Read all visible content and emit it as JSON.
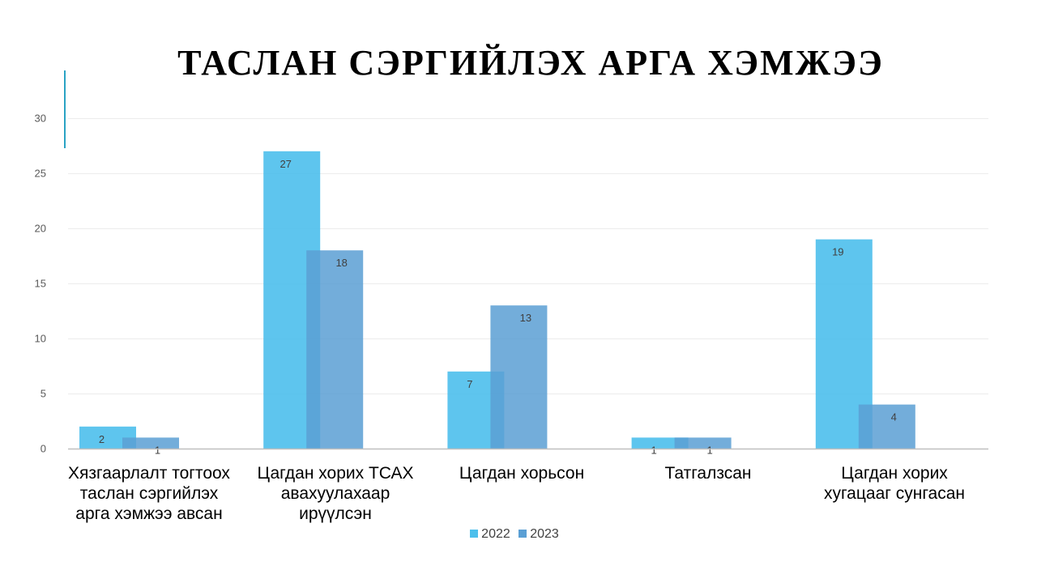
{
  "slide": {
    "title": "ТАСЛАН СЭРГИЙЛЭХ АРГА ХЭМЖЭЭ",
    "accent_color": "#2aa3c4"
  },
  "chart_data": {
    "type": "bar",
    "title": "ТАСЛАН СЭРГИЙЛЭХ АРГА ХЭМЖЭЭ",
    "categories": [
      "Хязгаарлалт тогтоох таслан сэргийлэх арга хэмжээ авсан",
      "Цагдан хорих ТСАХ авахуулахаар ирүүлсэн",
      "Цагдан хорьсон",
      "Татгалзсан",
      "Цагдан хорих хугацааг сунгасан"
    ],
    "series": [
      {
        "name": "2022",
        "color": "#4cbfec",
        "values": [
          2,
          27,
          7,
          1,
          19
        ]
      },
      {
        "name": "2023",
        "color": "#5a9fd4",
        "values": [
          1,
          18,
          13,
          1,
          4
        ]
      }
    ],
    "ylim": [
      0,
      30
    ],
    "yticks": [
      "0",
      "5",
      "10",
      "15",
      "20",
      "25",
      "30"
    ],
    "grid": true,
    "legend": "bottom",
    "data_labels": true
  }
}
